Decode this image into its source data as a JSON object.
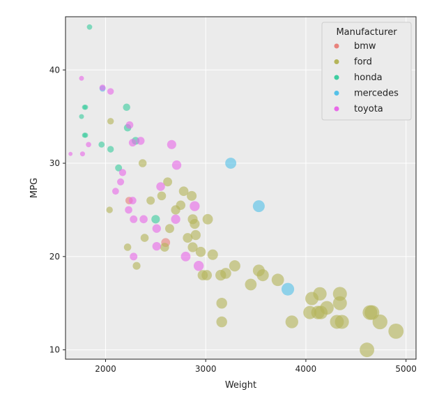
{
  "chart_data": {
    "type": "scatter",
    "xlabel": "Weight",
    "ylabel": "MPG",
    "xlim": [
      1600,
      5100
    ],
    "ylim": [
      9,
      45.7
    ],
    "xticks": [
      2000,
      3000,
      4000,
      5000
    ],
    "yticks": [
      10,
      20,
      30,
      40
    ],
    "grid": true,
    "background": "#ebebeb",
    "legend": {
      "title": "Manufacturer",
      "placement": "top-right"
    },
    "size_encoding": "marker area scales with weight",
    "series": [
      {
        "name": "bmw",
        "color": "#e8837d",
        "points": [
          [
            2235,
            26.0
          ],
          [
            2600,
            21.5
          ]
        ]
      },
      {
        "name": "ford",
        "color": "#b5b55a",
        "points": [
          [
            2050,
            34.5
          ],
          [
            2040,
            25.0
          ],
          [
            2220,
            21.0
          ],
          [
            2310,
            19.0
          ],
          [
            2370,
            30.0
          ],
          [
            2390,
            22.0
          ],
          [
            2450,
            26.0
          ],
          [
            2560,
            26.5
          ],
          [
            2590,
            21.0
          ],
          [
            2620,
            28.0
          ],
          [
            2640,
            23.0
          ],
          [
            2700,
            25.0
          ],
          [
            2750,
            25.5
          ],
          [
            2780,
            27.0
          ],
          [
            2820,
            22.0
          ],
          [
            2860,
            26.5
          ],
          [
            2870,
            24.0
          ],
          [
            2870,
            21.0
          ],
          [
            2890,
            23.5
          ],
          [
            2900,
            22.3
          ],
          [
            2950,
            20.5
          ],
          [
            2970,
            18.0
          ],
          [
            3020,
            24.0
          ],
          [
            3010,
            18.0
          ],
          [
            3070,
            20.2
          ],
          [
            3150,
            18.0
          ],
          [
            3160,
            15.0
          ],
          [
            3160,
            13.0
          ],
          [
            3200,
            18.2
          ],
          [
            3290,
            19.0
          ],
          [
            3450,
            17.0
          ],
          [
            3530,
            18.5
          ],
          [
            3570,
            18.0
          ],
          [
            3720,
            17.5
          ],
          [
            3860,
            13.0
          ],
          [
            4040,
            14.0
          ],
          [
            4060,
            15.5
          ],
          [
            4120,
            14.0
          ],
          [
            4140,
            16.0
          ],
          [
            4150,
            14.0
          ],
          [
            4210,
            14.5
          ],
          [
            4310,
            13.0
          ],
          [
            4340,
            16.0
          ],
          [
            4340,
            15.0
          ],
          [
            4360,
            13.0
          ],
          [
            4610,
            10.0
          ],
          [
            4640,
            14.0
          ],
          [
            4660,
            14.0
          ],
          [
            4740,
            13.0
          ],
          [
            4900,
            12.0
          ]
        ]
      },
      {
        "name": "honda",
        "color": "#3ecda0",
        "points": [
          [
            1840,
            44.6
          ],
          [
            1760,
            35.0
          ],
          [
            1790,
            36.0
          ],
          [
            1800,
            36.0
          ],
          [
            1790,
            33.0
          ],
          [
            1800,
            33.0
          ],
          [
            1960,
            32.0
          ],
          [
            2050,
            31.5
          ],
          [
            2130,
            29.5
          ],
          [
            2210,
            36.0
          ],
          [
            2220,
            33.8
          ],
          [
            2300,
            32.4
          ],
          [
            2500,
            24.0
          ]
        ]
      },
      {
        "name": "mercedes",
        "color": "#55c1e8",
        "points": [
          [
            1970,
            38.0
          ],
          [
            3250,
            30.0
          ],
          [
            3530,
            25.4
          ],
          [
            3820,
            16.5
          ]
        ]
      },
      {
        "name": "toyota",
        "color": "#e86ae8",
        "points": [
          [
            1650,
            31.0
          ],
          [
            1760,
            39.1
          ],
          [
            1770,
            31.0
          ],
          [
            1830,
            32.0
          ],
          [
            1970,
            38.1
          ],
          [
            2050,
            37.7
          ],
          [
            2100,
            27.0
          ],
          [
            2150,
            28.0
          ],
          [
            2170,
            29.0
          ],
          [
            2230,
            25.0
          ],
          [
            2240,
            34.1
          ],
          [
            2270,
            32.2
          ],
          [
            2270,
            26.0
          ],
          [
            2280,
            24.0
          ],
          [
            2280,
            20.0
          ],
          [
            2350,
            32.4
          ],
          [
            2380,
            24.0
          ],
          [
            2510,
            23.0
          ],
          [
            2510,
            21.1
          ],
          [
            2550,
            27.5
          ],
          [
            2660,
            32.0
          ],
          [
            2700,
            24.0
          ],
          [
            2710,
            29.8
          ],
          [
            2800,
            20.0
          ],
          [
            2890,
            25.4
          ],
          [
            2930,
            19.0
          ]
        ]
      }
    ]
  }
}
